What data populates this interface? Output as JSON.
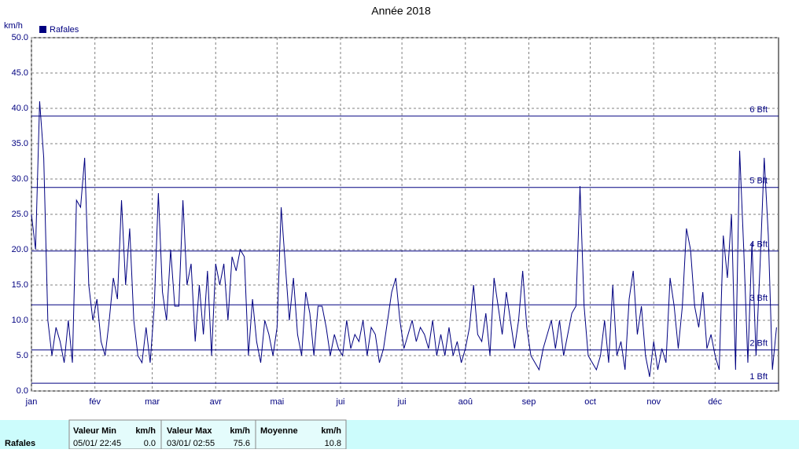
{
  "chart_data": {
    "type": "line",
    "title": "Année 2018",
    "y_label": "km/h",
    "series": [
      {
        "name": "Rafales",
        "color": "#000080",
        "values": [
          25,
          20,
          41,
          33,
          10,
          5,
          9,
          7,
          4,
          10,
          4,
          27,
          26,
          33,
          15,
          10,
          13,
          7,
          5,
          10,
          16,
          13,
          27,
          15,
          23,
          10,
          5,
          4,
          9,
          4,
          12,
          28,
          14,
          10,
          20,
          12,
          12,
          27,
          15,
          18,
          7,
          15,
          8,
          17,
          5,
          18,
          15,
          18,
          10,
          19,
          17,
          20,
          19,
          5,
          13,
          7,
          4,
          10,
          8,
          5,
          9,
          26,
          18,
          10,
          16,
          8,
          5,
          14,
          11,
          5,
          12,
          12,
          9,
          5,
          8,
          6,
          5,
          10,
          6,
          8,
          7,
          10,
          5,
          9,
          8,
          4,
          6,
          10,
          14,
          16,
          10,
          6,
          8,
          10,
          7,
          9,
          8,
          6,
          10,
          5,
          8,
          5,
          9,
          5,
          7,
          4,
          6,
          9,
          15,
          8,
          7,
          11,
          5,
          16,
          12,
          8,
          14,
          10,
          6,
          10,
          17,
          9,
          5,
          4,
          3,
          6,
          8,
          10,
          6,
          10,
          5,
          8,
          11,
          12,
          29,
          12,
          5,
          4,
          3,
          5,
          10,
          4,
          15,
          5,
          7,
          3,
          13,
          17,
          8,
          12,
          5,
          2,
          7,
          3,
          6,
          4,
          16,
          12,
          6,
          12,
          23,
          20,
          12,
          9,
          14,
          6,
          8,
          5,
          3,
          22,
          16,
          25,
          3,
          34,
          20,
          4,
          21,
          5,
          18,
          33,
          22,
          3,
          9
        ]
      }
    ],
    "x": [
      0,
      2,
      4,
      6,
      8,
      10,
      12,
      14,
      16,
      18,
      20,
      22,
      24,
      26,
      28,
      30,
      32,
      34,
      36,
      38,
      40,
      42,
      44,
      46,
      48,
      50,
      52,
      54,
      56,
      58,
      60,
      62,
      64,
      66,
      68,
      70,
      72,
      74,
      76,
      78,
      80,
      82,
      84,
      86,
      88,
      90,
      92,
      94,
      96,
      98,
      100,
      102,
      104,
      106,
      108,
      110,
      112,
      114,
      116,
      118,
      120,
      122,
      124,
      126,
      128,
      130,
      132,
      134,
      136,
      138,
      140,
      142,
      144,
      146,
      148,
      150,
      152,
      154,
      156,
      158,
      160,
      162,
      164,
      166,
      168,
      170,
      172,
      174,
      176,
      178,
      180,
      182,
      184,
      186,
      188,
      190,
      192,
      194,
      196,
      198,
      200,
      202,
      204,
      206,
      208,
      210,
      212,
      214,
      216,
      218,
      220,
      222,
      224,
      226,
      228,
      230,
      232,
      234,
      236,
      238,
      240,
      242,
      244,
      246,
      248,
      250,
      252,
      254,
      256,
      258,
      260,
      262,
      264,
      266,
      268,
      270,
      272,
      274,
      276,
      278,
      280,
      282,
      284,
      286,
      288,
      290,
      292,
      294,
      296,
      298,
      300,
      302,
      304,
      306,
      308,
      310,
      312,
      314,
      316,
      318,
      320,
      322,
      324,
      326,
      328,
      330,
      332,
      334,
      336,
      338,
      340,
      342,
      344,
      346,
      348,
      350,
      352,
      354,
      356,
      358,
      360,
      362,
      364
    ],
    "xlim": [
      0,
      365
    ],
    "xticks": [
      {
        "value": 0,
        "label": "jan"
      },
      {
        "value": 31,
        "label": "fév"
      },
      {
        "value": 59,
        "label": "mar"
      },
      {
        "value": 90,
        "label": "avr"
      },
      {
        "value": 120,
        "label": "mai"
      },
      {
        "value": 151,
        "label": "jui"
      },
      {
        "value": 181,
        "label": "jui"
      },
      {
        "value": 212,
        "label": "aoû"
      },
      {
        "value": 243,
        "label": "sep"
      },
      {
        "value": 273,
        "label": "oct"
      },
      {
        "value": 304,
        "label": "nov"
      },
      {
        "value": 334,
        "label": "déc"
      }
    ],
    "ylim": [
      0,
      50
    ],
    "yticks": [
      {
        "value": 0,
        "label": "0.0"
      },
      {
        "value": 5,
        "label": "5.0"
      },
      {
        "value": 10,
        "label": "10.0"
      },
      {
        "value": 15,
        "label": "15.0"
      },
      {
        "value": 20,
        "label": "20.0"
      },
      {
        "value": 25,
        "label": "25.0"
      },
      {
        "value": 30,
        "label": "30.0"
      },
      {
        "value": 35,
        "label": "35.0"
      },
      {
        "value": 40,
        "label": "40.0"
      },
      {
        "value": 45,
        "label": "45.0"
      },
      {
        "value": 50,
        "label": "50.0"
      }
    ],
    "hlines": [
      {
        "value": 1.1,
        "label": "1 Bft"
      },
      {
        "value": 5.8,
        "label": "2 Bft"
      },
      {
        "value": 12.2,
        "label": "3 Bft"
      },
      {
        "value": 19.8,
        "label": "4 Bft"
      },
      {
        "value": 28.8,
        "label": "5 Bft"
      },
      {
        "value": 38.9,
        "label": "6 Bft"
      }
    ],
    "grid": true,
    "legend": "top-left"
  },
  "stats": {
    "row_label": "Rafales",
    "min_label": "Valeur Min",
    "min_unit": "km/h",
    "min_date": "05/01/ 22:45",
    "min_value": "0.0",
    "max_label": "Valeur Max",
    "max_unit": "km/h",
    "max_date": "03/01/ 02:55",
    "max_value": "75.6",
    "avg_label": "Moyenne",
    "avg_unit": "km/h",
    "avg_value": "10.8"
  }
}
